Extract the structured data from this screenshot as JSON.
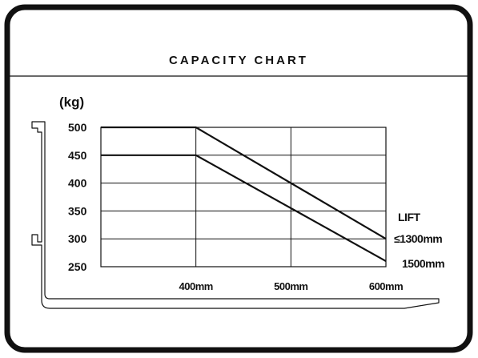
{
  "title": "CAPACITY CHART",
  "unit_label": "(kg)",
  "legend": {
    "heading": "LIFT",
    "entries": [
      "≤1300mm",
      "1500mm"
    ]
  },
  "chart_data": {
    "type": "line",
    "title": "CAPACITY CHART",
    "xlabel": "",
    "ylabel": "(kg)",
    "x_ticks": [
      "400mm",
      "500mm",
      "600mm"
    ],
    "y_ticks": [
      "500",
      "450",
      "400",
      "350",
      "300",
      "250"
    ],
    "xlim": [
      300,
      600
    ],
    "ylim": [
      250,
      500
    ],
    "grid": true,
    "legend_position": "right",
    "series": [
      {
        "name": "≤1300mm",
        "x": [
          300,
          400,
          600
        ],
        "y": [
          500,
          500,
          300
        ]
      },
      {
        "name": "1500mm",
        "x": [
          300,
          400,
          600
        ],
        "y": [
          450,
          450,
          260
        ]
      }
    ]
  }
}
